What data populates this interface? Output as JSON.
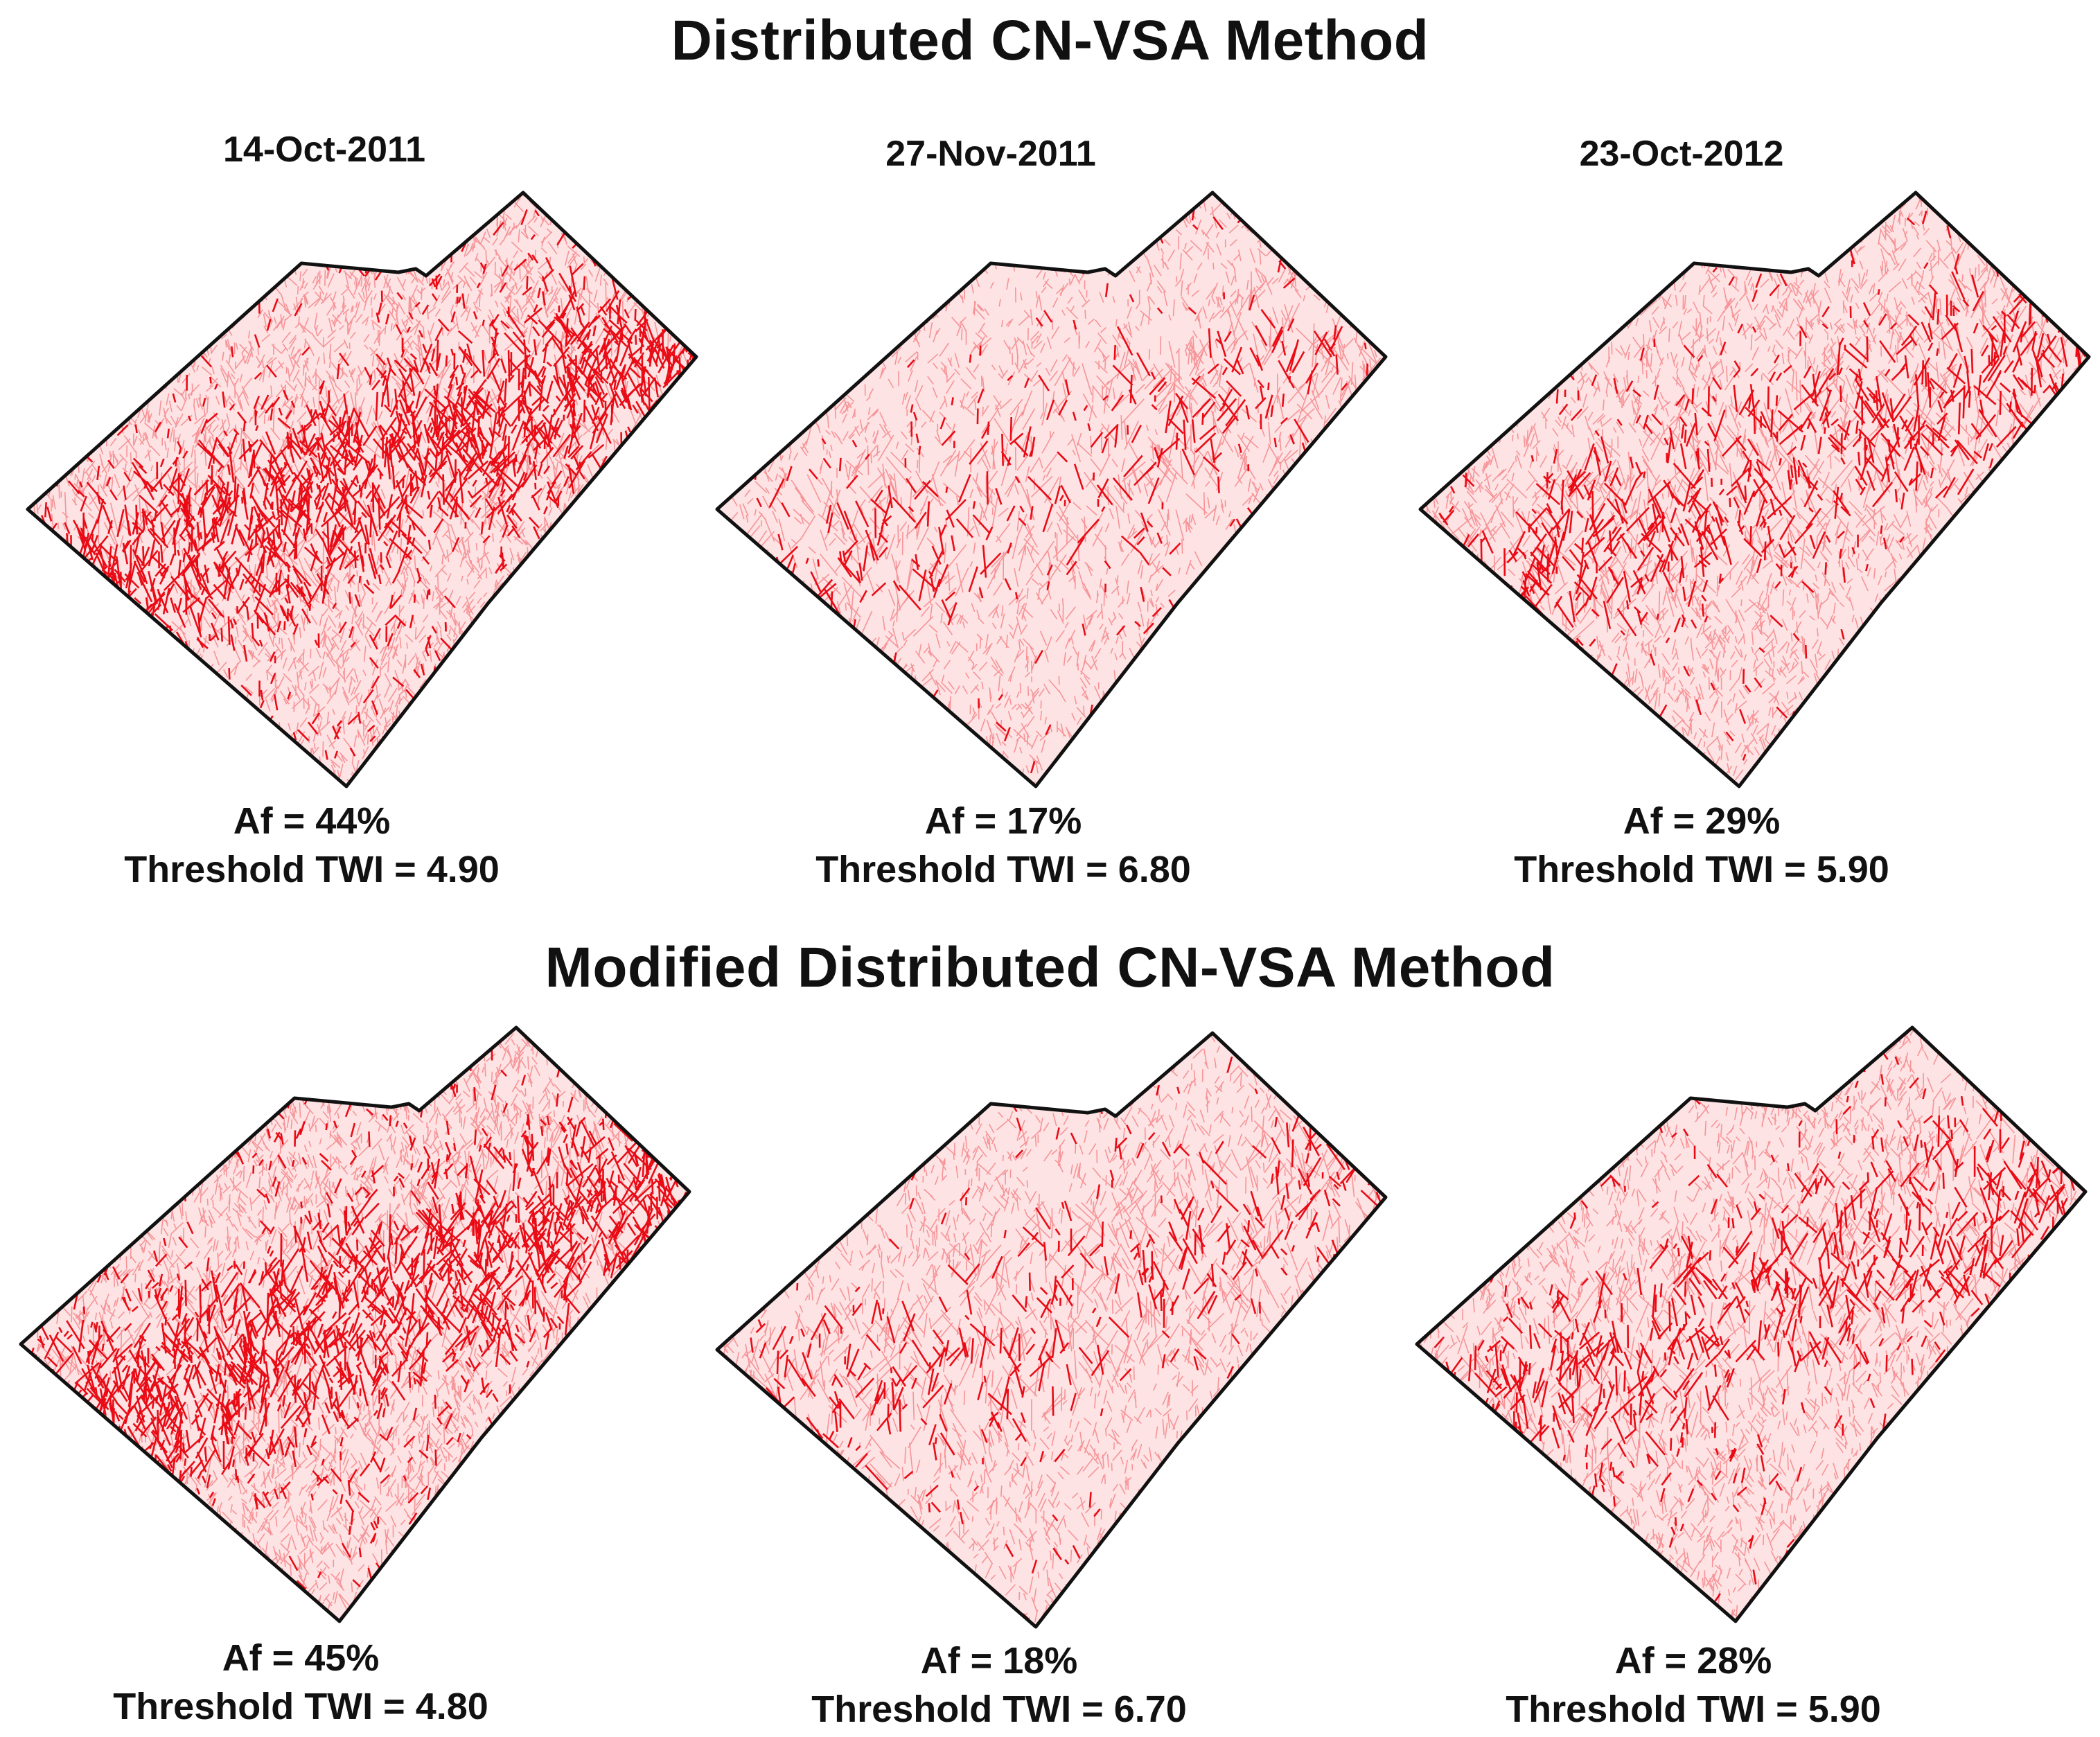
{
  "sections": [
    {
      "title": "Distributed CN-VSA Method",
      "panels": [
        {
          "date": "14-Oct-2011",
          "af_label": "Af = 44%",
          "twi_label": "Threshold TWI = 4.90",
          "af_percent": 44,
          "threshold_twi": 4.9
        },
        {
          "date": "27-Nov-2011",
          "af_label": "Af = 17%",
          "twi_label": "Threshold TWI = 6.80",
          "af_percent": 17,
          "threshold_twi": 6.8
        },
        {
          "date": "23-Oct-2012",
          "af_label": "Af = 29%",
          "twi_label": "Threshold TWI = 5.90",
          "af_percent": 29,
          "threshold_twi": 5.9
        }
      ]
    },
    {
      "title": "Modified Distributed CN-VSA Method",
      "panels": [
        {
          "af_label": "Af = 45%",
          "twi_label": "Threshold TWI = 4.80",
          "af_percent": 45,
          "threshold_twi": 4.8
        },
        {
          "af_label": "Af = 18%",
          "twi_label": "Threshold TWI = 6.70",
          "af_percent": 18,
          "threshold_twi": 6.7
        },
        {
          "af_label": "Af = 28%",
          "twi_label": "Threshold TWI = 5.90",
          "af_percent": 28,
          "threshold_twi": 5.9
        }
      ]
    }
  ],
  "colors": {
    "saturated_area": "#e8000b",
    "light_fill": "#fde3e4",
    "outline": "#111111"
  }
}
